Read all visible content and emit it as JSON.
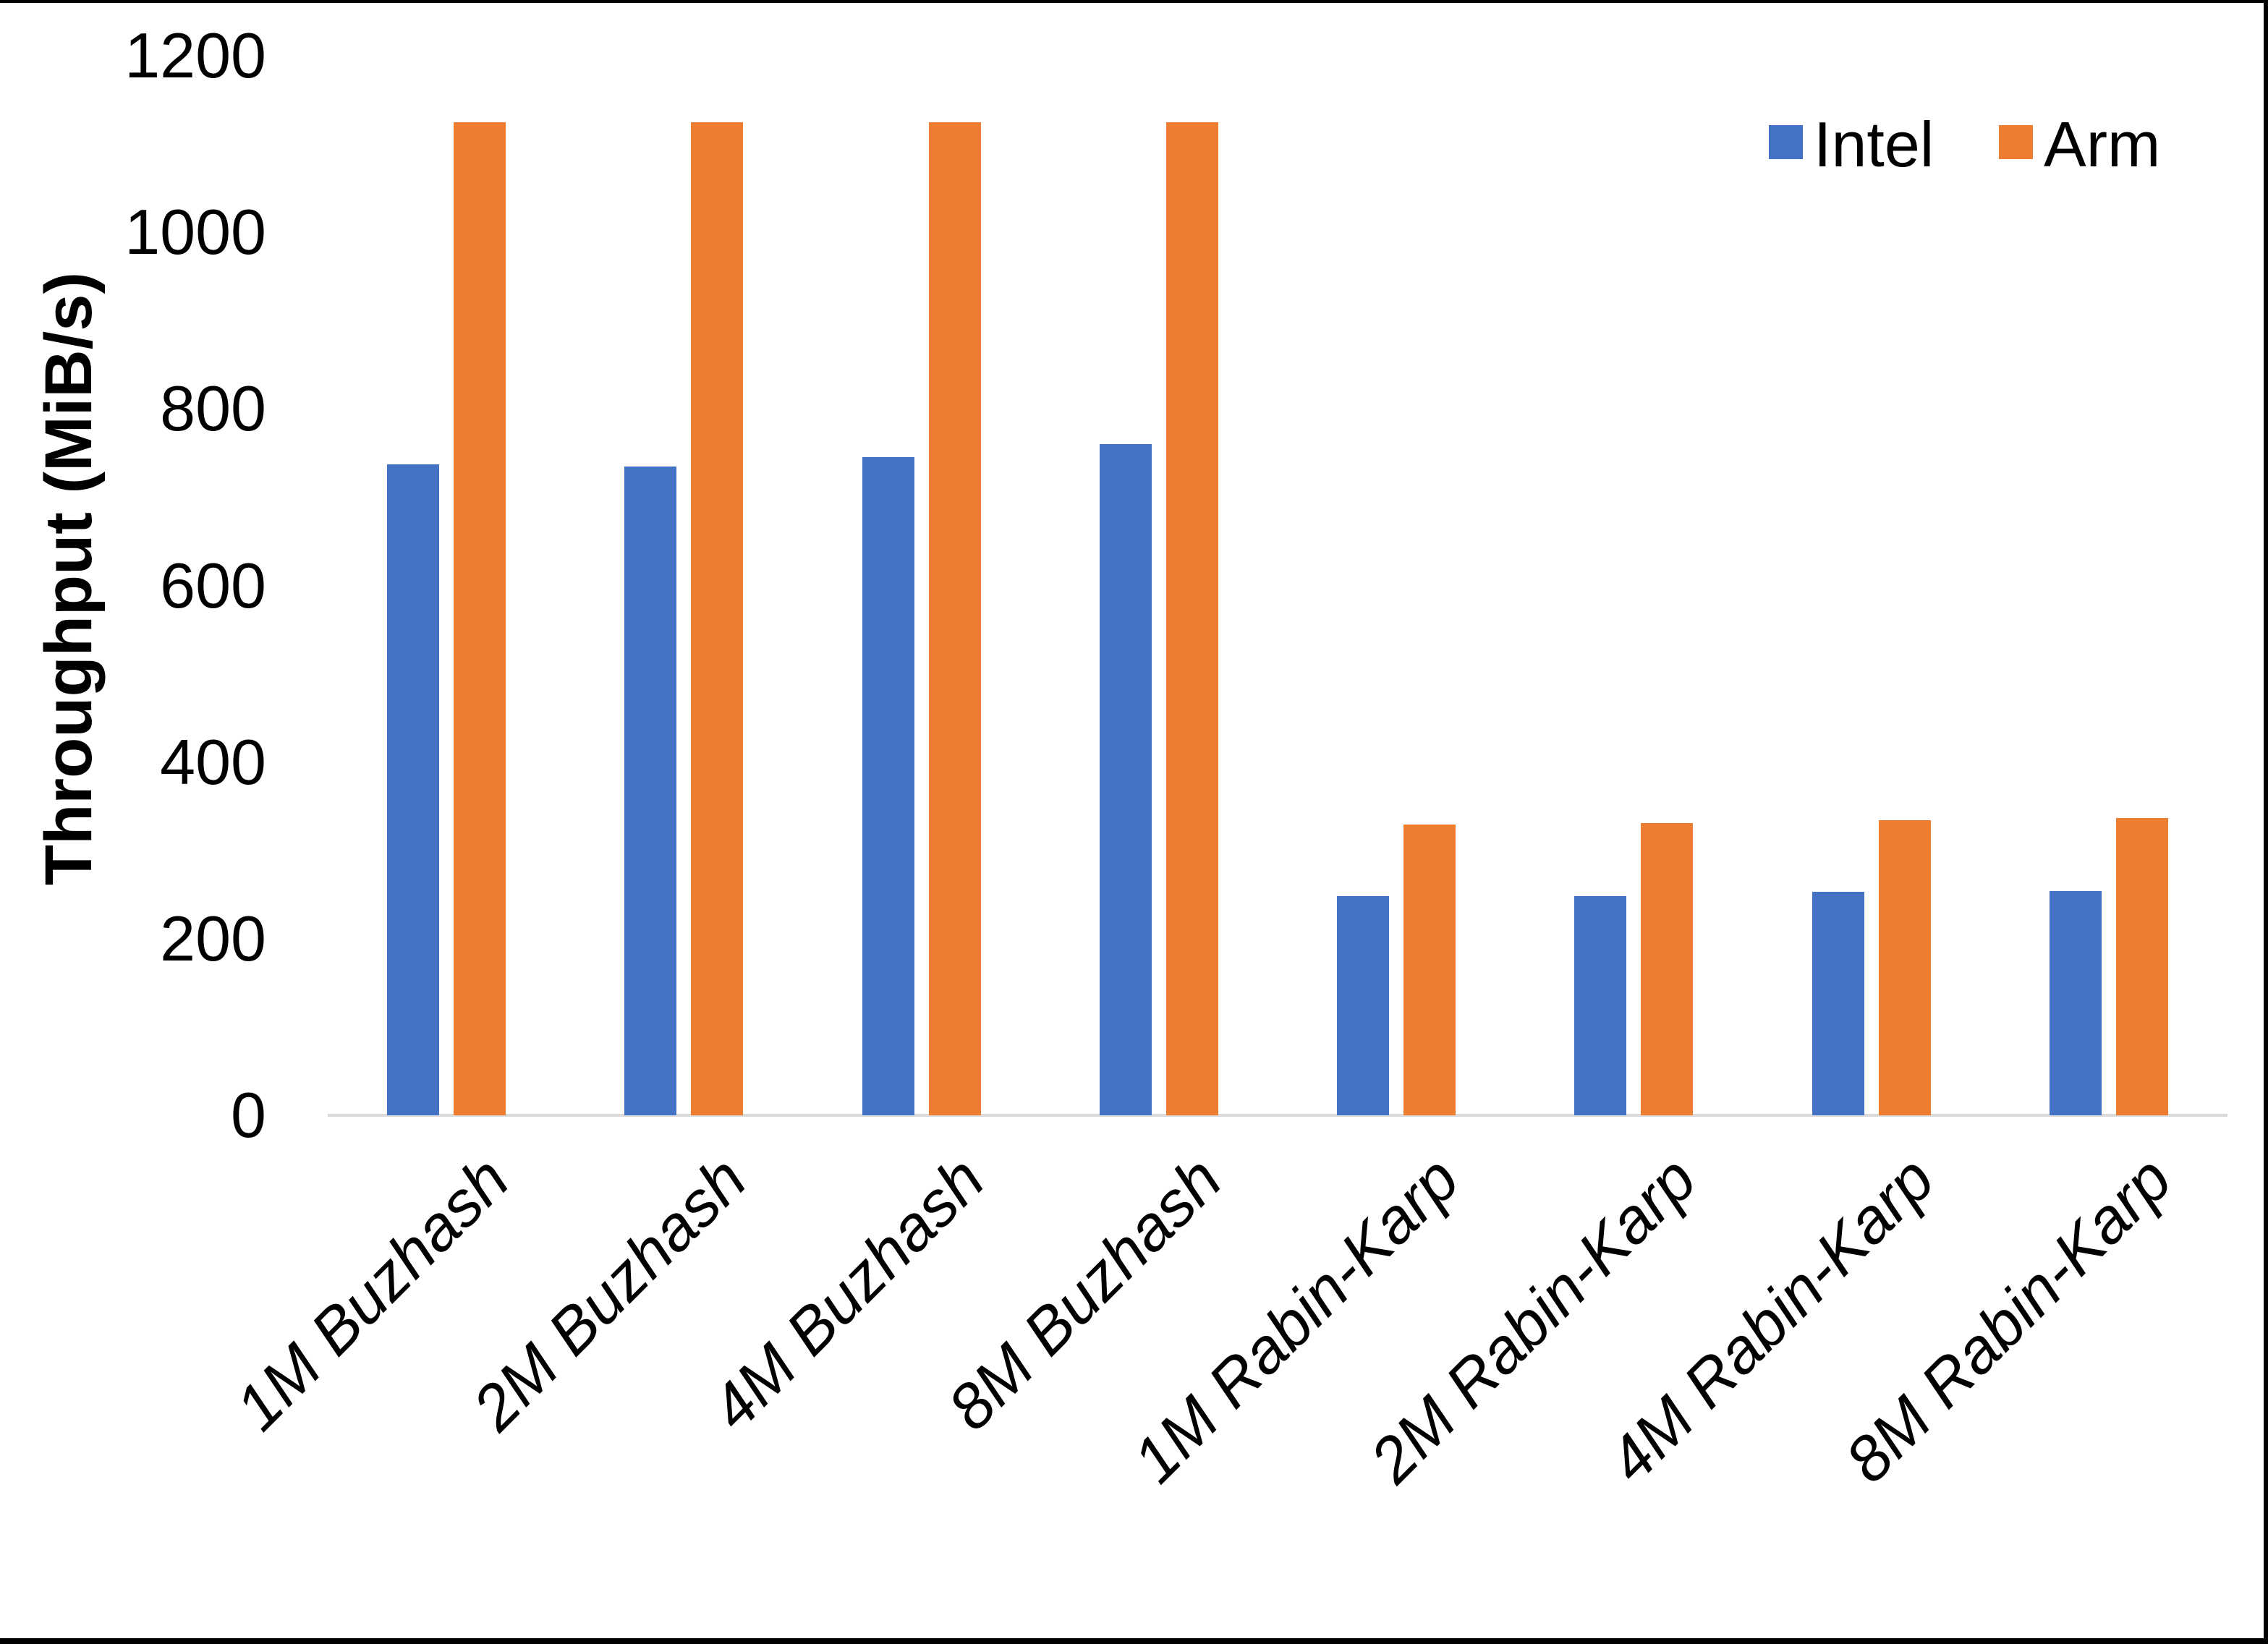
{
  "chart_data": {
    "type": "bar",
    "title": "",
    "xlabel": "",
    "ylabel": "Throughput (MiB/s)",
    "ylim": [
      0,
      1200
    ],
    "yticks": [
      0,
      200,
      400,
      600,
      800,
      1000,
      1200
    ],
    "grid": false,
    "legend_position": "top-right",
    "categories": [
      "1M Buzhash",
      "2M Buzhash",
      "4M Buzhash",
      "8M Buzhash",
      "1M Rabin-Karp",
      "2M Rabin-Karp",
      "4M Rabin-Karp",
      "8M Rabin-Karp"
    ],
    "series": [
      {
        "name": "Intel",
        "color": "#4472C4",
        "values": [
          737,
          735,
          745,
          760,
          248,
          248,
          253,
          254
        ]
      },
      {
        "name": "Arm",
        "color": "#ED7D31",
        "values": [
          1125,
          1125,
          1125,
          1125,
          329,
          331,
          334,
          337
        ]
      }
    ],
    "colors": {
      "intel": "#4472C4",
      "arm": "#ED7D31",
      "axis_line": "#D9D9D9",
      "text": "#000000",
      "background": "#FFFFFF",
      "window_border": "#000000"
    }
  }
}
